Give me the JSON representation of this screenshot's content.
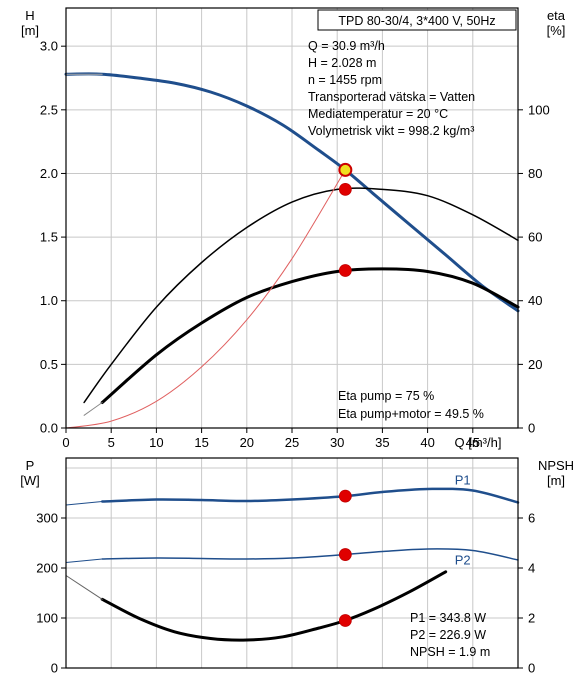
{
  "chart_data": [
    {
      "type": "line",
      "panel": "head-efficiency",
      "x_axis": {
        "label": "Q [m³/h]",
        "range": [
          0,
          50
        ],
        "ticks": [
          0,
          5,
          10,
          15,
          20,
          25,
          30,
          35,
          40,
          45
        ]
      },
      "y_left": {
        "label_line1": "H",
        "label_line2": "[m]",
        "range": [
          0,
          3.3
        ],
        "ticks": [
          0,
          0.5,
          1.0,
          1.5,
          2.0,
          2.5,
          3.0
        ],
        "tick_labels": [
          "0.0",
          "0.5",
          "1.0",
          "1.5",
          "2.0",
          "2.5",
          "3.0"
        ]
      },
      "y_right": {
        "label_line1": "eta",
        "label_line2": "[%]",
        "range": [
          0,
          132
        ],
        "ticks": [
          0,
          20,
          40,
          60,
          80,
          100
        ]
      },
      "info_box": {
        "title": "TPD 80-30/4, 3*400 V, 50Hz"
      },
      "info_lines": [
        "Q = 30.9 m³/h",
        "H = 2.028 m",
        "n = 1455 rpm",
        "Transporterad vätska = Vatten",
        "Mediatemperatur = 20 °C",
        "Volymetrisk vikt = 998.2 kg/m³"
      ],
      "eta_lines": [
        "Eta pump = 75 %",
        "Eta pump+motor = 49.5 %"
      ],
      "series": [
        {
          "id": "H",
          "axis": "left",
          "color": "#1f4e8c",
          "width": 3,
          "x": [
            0,
            4,
            8,
            12,
            16,
            20,
            24,
            28,
            30.9,
            34,
            38,
            42,
            46,
            50
          ],
          "y": [
            2.78,
            2.78,
            2.75,
            2.71,
            2.64,
            2.53,
            2.38,
            2.18,
            2.028,
            1.84,
            1.6,
            1.36,
            1.12,
            0.92
          ]
        },
        {
          "id": "H-extension",
          "axis": "left",
          "color": "#aaaaaa",
          "width": 1,
          "x": [
            0,
            4
          ],
          "y": [
            2.78,
            2.78
          ]
        },
        {
          "id": "eta-pump",
          "axis": "right",
          "color": "#000000",
          "width": 1.5,
          "x": [
            2,
            5,
            10,
            15,
            20,
            25,
            30,
            35,
            40,
            45,
            50
          ],
          "y": [
            8,
            20,
            38,
            52,
            63,
            71,
            75,
            75,
            73,
            67,
            59
          ]
        },
        {
          "id": "eta-pump-motor",
          "axis": "right",
          "color": "#000000",
          "width": 3,
          "x": [
            4,
            10,
            15,
            20,
            25,
            30,
            35,
            40,
            45,
            50
          ],
          "y": [
            8,
            23,
            33,
            41,
            46,
            49.2,
            50,
            49.2,
            45.5,
            38
          ]
        },
        {
          "id": "eta-pump-motor-extension",
          "axis": "right",
          "color": "#888888",
          "width": 1,
          "x": [
            2,
            4
          ],
          "y": [
            4,
            8
          ]
        },
        {
          "id": "system-curve",
          "axis": "left",
          "color": "#e06060",
          "width": 1,
          "x": [
            0,
            5,
            10,
            15,
            20,
            25,
            30.9
          ],
          "y": [
            0,
            0.054,
            0.21,
            0.48,
            0.85,
            1.33,
            2.028
          ]
        }
      ],
      "points": [
        {
          "id": "operating-point-H",
          "x": 30.9,
          "y": 2.028,
          "axis": "left",
          "fill": "#f0e020",
          "stroke": "#cc0000"
        },
        {
          "id": "operating-point-eta-pump",
          "x": 30.9,
          "y": 75,
          "axis": "right",
          "fill": "#e00000"
        },
        {
          "id": "operating-point-eta-motor",
          "x": 30.9,
          "y": 49.5,
          "axis": "right",
          "fill": "#e00000"
        }
      ]
    },
    {
      "type": "line",
      "panel": "power-npsh",
      "x_axis": {
        "range": [
          0,
          50
        ]
      },
      "y_left": {
        "label_line1": "P",
        "label_line2": "[W]",
        "range": [
          0,
          420
        ],
        "ticks": [
          0,
          100,
          200,
          300
        ]
      },
      "y_right": {
        "label_line1": "NPSH",
        "label_line2": "[m]",
        "range": [
          0,
          8.4
        ],
        "ticks": [
          0,
          2,
          4,
          6
        ]
      },
      "values_lines": [
        "P1 = 343.8 W",
        "P2 = 226.9 W",
        "NPSH = 1.9 m"
      ],
      "series": [
        {
          "id": "P1",
          "name": "P1",
          "axis": "left",
          "color": "#1f4e8c",
          "width": 2.5,
          "x": [
            4,
            10,
            15,
            20,
            25,
            30.9,
            35,
            40,
            45,
            50
          ],
          "y": [
            333,
            337,
            336,
            334,
            337,
            343.8,
            352,
            358,
            355,
            331
          ]
        },
        {
          "id": "P1-extension",
          "axis": "left",
          "color": "#1f4e8c",
          "width": 1,
          "x": [
            0,
            4
          ],
          "y": [
            326,
            333
          ]
        },
        {
          "id": "P2",
          "name": "P2",
          "axis": "left",
          "color": "#1f4e8c",
          "width": 1.5,
          "x": [
            4,
            10,
            15,
            20,
            25,
            30.9,
            35,
            40,
            45,
            50
          ],
          "y": [
            218,
            220,
            219,
            218,
            220,
            226.9,
            233,
            238,
            235,
            216
          ]
        },
        {
          "id": "P2-extension",
          "axis": "left",
          "color": "#1f4e8c",
          "width": 1,
          "x": [
            0,
            4
          ],
          "y": [
            211,
            218
          ]
        },
        {
          "id": "NPSH",
          "axis": "right",
          "color": "#000000",
          "width": 3,
          "x": [
            4,
            8,
            12,
            16,
            20,
            24,
            28,
            30.9,
            34,
            38,
            42
          ],
          "y": [
            2.75,
            2.0,
            1.45,
            1.18,
            1.12,
            1.25,
            1.6,
            1.9,
            2.35,
            3.05,
            3.85
          ]
        },
        {
          "id": "NPSH-extension",
          "axis": "right",
          "color": "#666666",
          "width": 1,
          "x": [
            0,
            4
          ],
          "y": [
            3.7,
            2.75
          ]
        }
      ],
      "points": [
        {
          "id": "operating-point-P1",
          "x": 30.9,
          "y": 343.8,
          "axis": "left",
          "fill": "#e00000"
        },
        {
          "id": "operating-point-P2",
          "x": 30.9,
          "y": 226.9,
          "axis": "left",
          "fill": "#e00000"
        },
        {
          "id": "operating-point-NPSH",
          "x": 30.9,
          "y": 1.9,
          "axis": "right",
          "fill": "#e00000"
        }
      ]
    }
  ]
}
